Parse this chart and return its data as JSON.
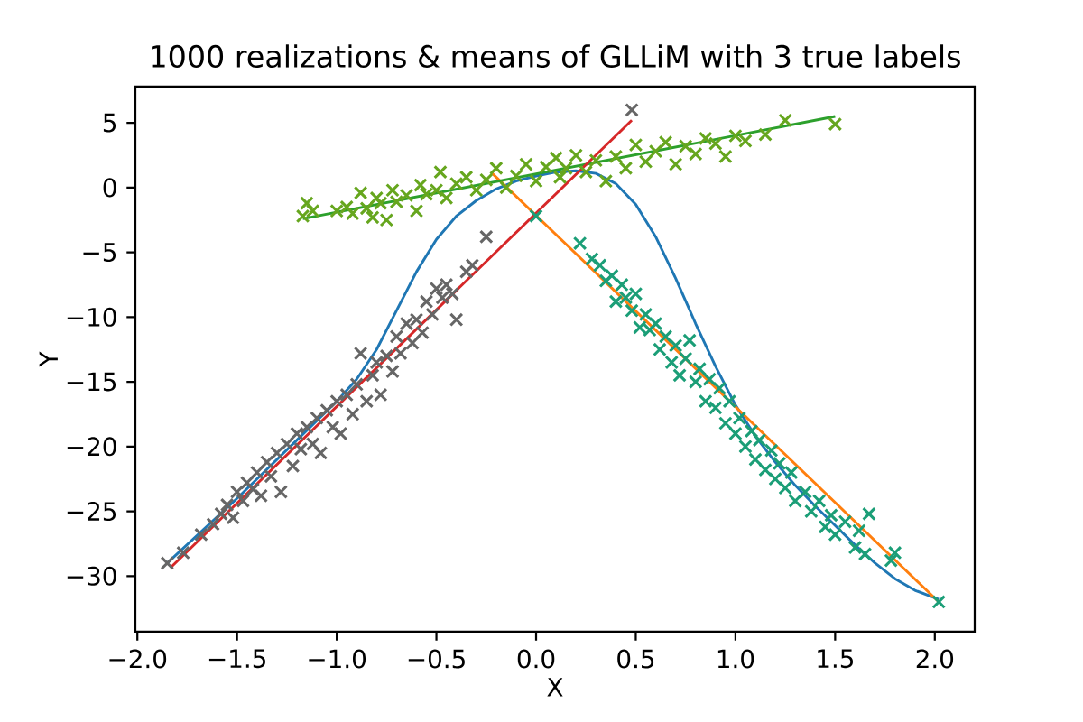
{
  "chart_data": {
    "type": "scatter",
    "title": "1000 realizations & means of GLLiM with 3 true labels",
    "xlabel": "X",
    "ylabel": "Y",
    "xlim": [
      -2.01,
      2.2
    ],
    "ylim": [
      -34.3,
      7.8
    ],
    "xticks": [
      {
        "value": -2.0,
        "label": "−2.0"
      },
      {
        "value": -1.5,
        "label": "−1.5"
      },
      {
        "value": -1.0,
        "label": "−1.0"
      },
      {
        "value": -0.5,
        "label": "−0.5"
      },
      {
        "value": 0.0,
        "label": "0.0"
      },
      {
        "value": 0.5,
        "label": "0.5"
      },
      {
        "value": 1.0,
        "label": "1.0"
      },
      {
        "value": 1.5,
        "label": "1.5"
      },
      {
        "value": 2.0,
        "label": "2.0"
      }
    ],
    "yticks": [
      {
        "value": -30,
        "label": "−30"
      },
      {
        "value": -25,
        "label": "−25"
      },
      {
        "value": -20,
        "label": "−20"
      },
      {
        "value": -15,
        "label": "−15"
      },
      {
        "value": -10,
        "label": "−10"
      },
      {
        "value": -5,
        "label": "−5"
      },
      0,
      5
    ],
    "series": [
      {
        "marker": "cross",
        "color": "#666666",
        "x": [
          -1.85,
          -1.77,
          -1.68,
          -1.62,
          -1.58,
          -1.55,
          -1.52,
          -1.5,
          -1.47,
          -1.45,
          -1.42,
          -1.4,
          -1.38,
          -1.35,
          -1.33,
          -1.3,
          -1.28,
          -1.25,
          -1.22,
          -1.2,
          -1.18,
          -1.15,
          -1.12,
          -1.1,
          -1.08,
          -1.05,
          -1.02,
          -1.0,
          -0.98,
          -0.95,
          -0.92,
          -0.9,
          -0.88,
          -0.85,
          -0.82,
          -0.8,
          -0.78,
          -0.75,
          -0.72,
          -0.7,
          -0.68,
          -0.65,
          -0.62,
          -0.6,
          -0.57,
          -0.55,
          -0.52,
          -0.5,
          -0.47,
          -0.45,
          -0.42,
          -0.4,
          -0.35,
          -0.32,
          -0.25,
          0.48
        ],
        "values": [
          -29,
          -28.2,
          -26.8,
          -26,
          -25.2,
          -24.5,
          -25.5,
          -23.5,
          -24.2,
          -22.8,
          -23.3,
          -22,
          -23.8,
          -21.2,
          -22.3,
          -20.5,
          -23.5,
          -19.8,
          -21.5,
          -19,
          -20.2,
          -18.5,
          -19.8,
          -17.8,
          -20.5,
          -17.2,
          -18.5,
          -16.5,
          -19,
          -16,
          -17.5,
          -15.2,
          -12.8,
          -16.5,
          -14.5,
          -13.5,
          -16,
          -13,
          -14.2,
          -11.5,
          -12.8,
          -10.5,
          -12,
          -10.2,
          -11.2,
          -8.8,
          -9.8,
          -7.8,
          -8.5,
          -7.5,
          -8.2,
          -10.2,
          -6.5,
          -6,
          -3.8,
          6
        ]
      },
      {
        "marker": "cross",
        "color": "#1b9e77",
        "x": [
          0.0,
          0.22,
          0.28,
          0.32,
          0.35,
          0.38,
          0.4,
          0.43,
          0.45,
          0.48,
          0.5,
          0.52,
          0.55,
          0.57,
          0.6,
          0.62,
          0.65,
          0.68,
          0.7,
          0.72,
          0.75,
          0.77,
          0.8,
          0.82,
          0.85,
          0.87,
          0.9,
          0.92,
          0.95,
          0.97,
          1.0,
          1.02,
          1.05,
          1.08,
          1.1,
          1.12,
          1.15,
          1.18,
          1.2,
          1.22,
          1.25,
          1.28,
          1.3,
          1.35,
          1.38,
          1.42,
          1.45,
          1.48,
          1.5,
          1.55,
          1.6,
          1.62,
          1.65,
          1.67,
          1.78,
          1.8,
          2.02
        ],
        "values": [
          -2.2,
          -4.3,
          -5.5,
          -6,
          -7.2,
          -6.8,
          -8.8,
          -7.5,
          -8.5,
          -9.5,
          -8.2,
          -10.8,
          -9.8,
          -11,
          -10.5,
          -12.5,
          -11.5,
          -13.5,
          -12.2,
          -14.5,
          -13.2,
          -11.8,
          -15,
          -14,
          -16.5,
          -14.8,
          -17,
          -15.5,
          -18.2,
          -16.5,
          -19,
          -17.8,
          -20,
          -18.8,
          -21,
          -19.5,
          -21.8,
          -20.3,
          -22.5,
          -21.3,
          -23.2,
          -22,
          -24.2,
          -23.5,
          -25,
          -24.2,
          -26.2,
          -25.3,
          -26.8,
          -25.8,
          -27.8,
          -26.5,
          -28.3,
          -25.2,
          -28.8,
          -28.2,
          -32
        ]
      },
      {
        "marker": "cross",
        "color": "#66a61e",
        "x": [
          -1.17,
          -1.15,
          -1.12,
          -1.0,
          -0.95,
          -0.92,
          -0.88,
          -0.85,
          -0.82,
          -0.8,
          -0.78,
          -0.75,
          -0.72,
          -0.7,
          -0.65,
          -0.6,
          -0.58,
          -0.55,
          -0.5,
          -0.48,
          -0.45,
          -0.4,
          -0.35,
          -0.3,
          -0.25,
          -0.2,
          -0.15,
          -0.1,
          -0.05,
          0.0,
          0.05,
          0.1,
          0.12,
          0.15,
          0.2,
          0.25,
          0.3,
          0.35,
          0.4,
          0.45,
          0.5,
          0.55,
          0.6,
          0.65,
          0.7,
          0.75,
          0.8,
          0.85,
          0.9,
          0.95,
          1.0,
          1.05,
          1.15,
          1.25,
          1.5
        ],
        "values": [
          -2.2,
          -1.2,
          -1.8,
          -1.8,
          -1.5,
          -2,
          -0.4,
          -1.6,
          -2.3,
          -0.8,
          -1.2,
          -2.5,
          -0.2,
          -1.1,
          -0.6,
          -1.8,
          0.2,
          -0.5,
          -0.2,
          1.2,
          -0.8,
          0.3,
          0.8,
          -0.2,
          0.6,
          1.5,
          0,
          0.9,
          1.8,
          0.5,
          1.6,
          2.3,
          0.8,
          1.5,
          2.5,
          1.2,
          2.1,
          0.5,
          2.4,
          1.5,
          3.3,
          2,
          2.8,
          3.5,
          1.8,
          3.2,
          2.6,
          3.8,
          3.4,
          2.4,
          4,
          3.6,
          4.1,
          5.2,
          4.9
        ]
      },
      {
        "type": "line",
        "marker": "none",
        "color": "#1f77b4",
        "x": [
          -1.85,
          -1.5,
          -1.2,
          -1.0,
          -0.9,
          -0.8,
          -0.7,
          -0.6,
          -0.5,
          -0.4,
          -0.3,
          -0.2,
          -0.1,
          0.0,
          0.1,
          0.2,
          0.3,
          0.4,
          0.5,
          0.6,
          0.7,
          0.8,
          0.9,
          1.0,
          1.1,
          1.2,
          1.3,
          1.4,
          1.5,
          1.6,
          1.7,
          1.8,
          1.9,
          2.02
        ],
        "values": [
          -29,
          -24,
          -19.5,
          -16.5,
          -14.8,
          -12.5,
          -9.5,
          -6.5,
          -4,
          -2.2,
          -1,
          -0.1,
          0.5,
          0.9,
          1.2,
          1.3,
          1.1,
          0.3,
          -1.3,
          -3.8,
          -7,
          -10.5,
          -13.8,
          -16.8,
          -19.2,
          -21.2,
          -23,
          -24.6,
          -26.1,
          -27.6,
          -29,
          -30.2,
          -31.1,
          -31.8
        ]
      },
      {
        "type": "line",
        "marker": "none",
        "color": "#ff7f0e",
        "x": [
          -0.22,
          2.02
        ],
        "values": [
          1.1,
          -32
        ]
      },
      {
        "type": "line",
        "marker": "none",
        "color": "#2ca02c",
        "x": [
          -1.17,
          1.5
        ],
        "values": [
          -2.4,
          5.5
        ]
      },
      {
        "type": "line",
        "marker": "none",
        "color": "#d62728",
        "x": [
          -1.83,
          0.48
        ],
        "values": [
          -29.3,
          5.2
        ]
      }
    ]
  }
}
